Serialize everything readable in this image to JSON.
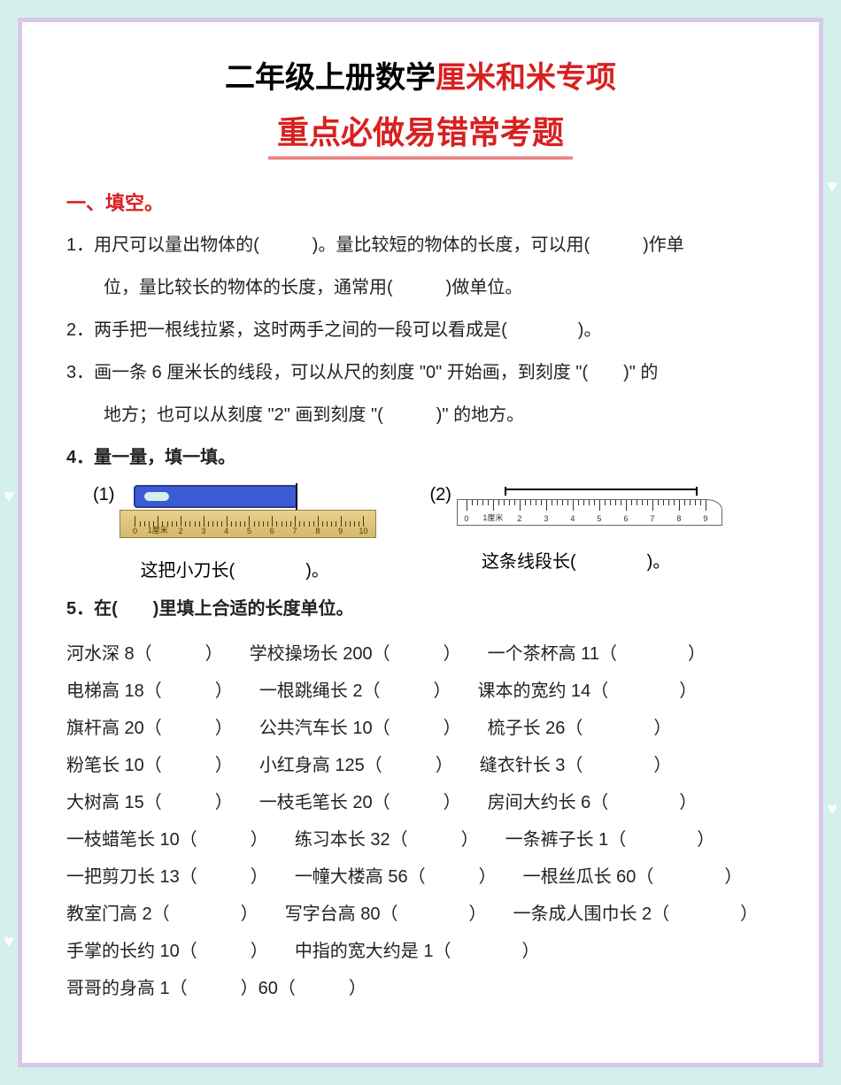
{
  "title": {
    "part1": "二年级上册数学",
    "part2": "厘米和米专项"
  },
  "subtitle": "重点必做易错常考题",
  "section1_header": "一、填空。",
  "q1": "1．用尺可以量出物体的(　　　)。量比较短的物体的长度，可以用(　　　)作单",
  "q1_cont": "位，量比较长的物体的长度，通常用(　　　)做单位。",
  "q2": "2．两手把一根线拉紧，这时两手之间的一段可以看成是(　　　　)。",
  "q3": "3．画一条 6 厘米长的线段，可以从尺的刻度 \"0\" 开始画，到刻度 \"(　　)\" 的",
  "q3_cont": "地方；也可以从刻度 \"2\" 画到刻度 \"(　　　)\" 的地方。",
  "q4_header": "4．量一量，填一填。",
  "diagram1_label": "(1)",
  "diagram2_label": "(2)",
  "diagram1_caption": "这把小刀长(　　　　)。",
  "diagram2_caption": "这条线段长(　　　　)。",
  "ruler1_unit": "厘米",
  "ruler2_unit": "厘米",
  "q5_header": "5．在(　　)里填上合适的长度单位。",
  "units": [
    [
      "河水深 8（　　　）",
      "学校操场长 200（　　　）",
      "一个茶杯高 11（　　　　）"
    ],
    [
      "电梯高 18（　　　）",
      "一根跳绳长 2（　　　）",
      "课本的宽约 14（　　　　）"
    ],
    [
      "旗杆高 20（　　　）",
      "公共汽车长 10（　　　）",
      "梳子长 26（　　　　）"
    ],
    [
      "粉笔长 10（　　　）",
      "小红身高 125（　　　）",
      "缝衣针长 3（　　　　）"
    ],
    [
      "大树高 15（　　　）",
      "一枝毛笔长 20（　　　）",
      "房间大约长 6（　　　　）"
    ],
    [
      "一枝蜡笔长 10（　　　）",
      "练习本长 32（　　　）",
      "一条裤子长 1（　　　　）"
    ],
    [
      "一把剪刀长 13（　　　）",
      "一幢大楼高 56（　　　）",
      "一根丝瓜长 60（　　　　）"
    ],
    [
      "教室门高 2（　　　　）",
      "写字台高 80（　　　　）",
      "一条成人围巾长 2（　　　　）"
    ],
    [
      "手掌的长约 10（　　　）",
      "中指的宽大约是 1（　　　　）",
      ""
    ],
    [
      "哥哥的身高 1（　　　）60（　　　）",
      "",
      ""
    ]
  ],
  "ruler1_marks": [
    0,
    1,
    2,
    3,
    4,
    5,
    6,
    7,
    8,
    9,
    10
  ],
  "ruler2_marks": [
    0,
    1,
    2,
    3,
    4,
    5,
    6,
    7,
    8,
    9
  ]
}
